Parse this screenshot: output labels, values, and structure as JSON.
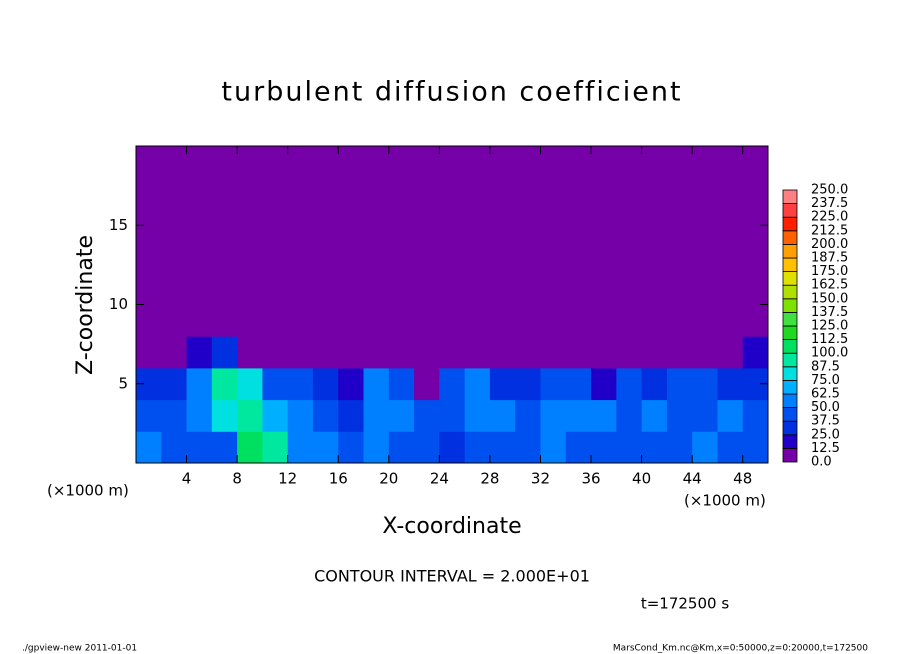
{
  "chart_data": {
    "type": "contour",
    "title": "turbulent diffusion coefficient",
    "x_label": "X-coordinate",
    "y_label": "Z-coordinate",
    "x_unit": "(×1000 m)",
    "y_unit": "(×1000 m)",
    "xlim": [
      0,
      50
    ],
    "ylim": [
      0,
      20
    ],
    "xticks": [
      4,
      8,
      12,
      16,
      20,
      24,
      28,
      32,
      36,
      40,
      44,
      48
    ],
    "yticks": [
      5,
      10,
      15
    ],
    "x": [
      1,
      3,
      5,
      7,
      9,
      11,
      13,
      15,
      17,
      19,
      21,
      23,
      25,
      27,
      29,
      31,
      33,
      35,
      37,
      39,
      41,
      43,
      45,
      47,
      49
    ],
    "z": [
      1,
      3,
      5,
      7,
      9,
      11,
      13,
      15,
      17,
      19
    ],
    "values": [
      [
        50,
        45,
        40,
        45,
        100,
        95,
        60,
        55,
        40,
        50,
        45,
        40,
        35,
        45,
        40,
        45,
        50,
        40,
        45,
        40,
        45,
        40,
        50,
        45,
        40
      ],
      [
        40,
        45,
        55,
        80,
        90,
        70,
        50,
        45,
        35,
        55,
        60,
        45,
        40,
        55,
        50,
        45,
        55,
        50,
        60,
        45,
        50,
        40,
        45,
        50,
        45
      ],
      [
        30,
        35,
        50,
        90,
        75,
        40,
        45,
        30,
        20,
        50,
        40,
        10,
        40,
        50,
        35,
        30,
        40,
        45,
        15,
        40,
        35,
        45,
        40,
        35,
        30
      ],
      [
        5,
        10,
        20,
        30,
        5,
        0,
        5,
        10,
        0,
        0,
        0,
        0,
        0,
        0,
        0,
        0,
        0,
        0,
        0,
        0,
        0,
        0,
        0,
        10,
        15
      ],
      [
        0,
        0,
        0,
        0,
        0,
        0,
        0,
        0,
        0,
        0,
        0,
        0,
        0,
        0,
        0,
        0,
        0,
        0,
        0,
        0,
        0,
        0,
        0,
        0,
        0
      ],
      [
        0,
        0,
        0,
        0,
        0,
        0,
        0,
        0,
        0,
        0,
        0,
        0,
        0,
        0,
        0,
        0,
        0,
        0,
        0,
        0,
        0,
        0,
        0,
        0,
        0
      ],
      [
        0,
        0,
        0,
        0,
        0,
        0,
        0,
        0,
        0,
        0,
        0,
        0,
        0,
        0,
        0,
        0,
        0,
        0,
        0,
        0,
        0,
        0,
        0,
        0,
        0
      ],
      [
        0,
        0,
        0,
        0,
        0,
        0,
        0,
        0,
        0,
        0,
        0,
        0,
        0,
        0,
        0,
        0,
        0,
        0,
        0,
        0,
        0,
        0,
        0,
        0,
        0
      ],
      [
        0,
        0,
        0,
        0,
        0,
        0,
        0,
        0,
        0,
        0,
        0,
        0,
        0,
        0,
        0,
        0,
        0,
        0,
        0,
        0,
        0,
        0,
        0,
        0,
        0
      ],
      [
        0,
        0,
        0,
        0,
        0,
        0,
        0,
        0,
        0,
        0,
        0,
        0,
        0,
        0,
        0,
        0,
        0,
        0,
        0,
        0,
        0,
        0,
        0,
        0,
        0
      ]
    ],
    "levels": [
      {
        "value": 0,
        "label": "0.0"
      },
      {
        "value": 12.5,
        "label": "12.5"
      },
      {
        "value": 25,
        "label": "25.0"
      },
      {
        "value": 37.5,
        "label": "37.5"
      },
      {
        "value": 50,
        "label": "50.0"
      },
      {
        "value": 62.5,
        "label": "62.5"
      },
      {
        "value": 75,
        "label": "75.0"
      },
      {
        "value": 87.5,
        "label": "87.5"
      },
      {
        "value": 100,
        "label": "100.0"
      },
      {
        "value": 112.5,
        "label": "112.5"
      },
      {
        "value": 125,
        "label": "125.0"
      },
      {
        "value": 137.5,
        "label": "137.5"
      },
      {
        "value": 150,
        "label": "150.0"
      },
      {
        "value": 162.5,
        "label": "162.5"
      },
      {
        "value": 175,
        "label": "175.0"
      },
      {
        "value": 187.5,
        "label": "187.5"
      },
      {
        "value": 200,
        "label": "200.0"
      },
      {
        "value": 212.5,
        "label": "212.5"
      },
      {
        "value": 225,
        "label": "225.0"
      },
      {
        "value": 237.5,
        "label": "237.5"
      },
      {
        "value": 250,
        "label": "250.0"
      }
    ],
    "colors": [
      "#7500a8",
      "#2000c8",
      "#0030e0",
      "#0050f0",
      "#0080ff",
      "#00b0ff",
      "#00e0e0",
      "#00e8a0",
      "#00e060",
      "#20d820",
      "#40e040",
      "#80e000",
      "#b0e000",
      "#e0e000",
      "#ffc000",
      "#ffa000",
      "#ff6000",
      "#ff2000",
      "#ff4040",
      "#ff8080"
    ],
    "contour_interval": "CONTOUR INTERVAL = 2.000E+01",
    "time_label": "t=172500 s",
    "footer_left": "./gpview-new  2011-01-01",
    "footer_right": "MarsCond_Km.nc@Km,x=0:50000,z=0:20000,t=172500"
  }
}
